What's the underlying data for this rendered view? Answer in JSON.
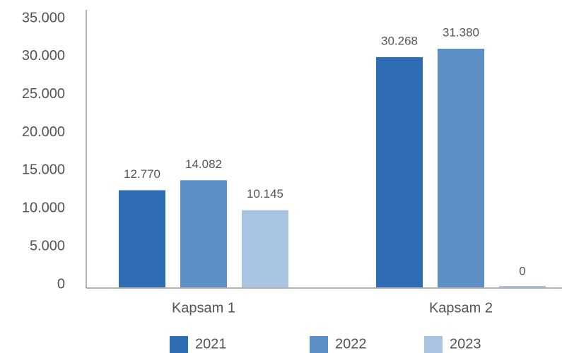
{
  "chart_data": {
    "type": "bar",
    "categories": [
      "Kapsam 1",
      "Kapsam 2"
    ],
    "series": [
      {
        "name": "2021",
        "color": "#2e6db4",
        "values": [
          12770,
          30268
        ],
        "value_labels": [
          "12.770",
          "30.268"
        ]
      },
      {
        "name": "2022",
        "color": "#5b8fc6",
        "values": [
          14082,
          31380
        ],
        "value_labels": [
          "14.082",
          "31.380"
        ]
      },
      {
        "name": "2023",
        "color": "#a9c4e0",
        "values": [
          10145,
          0
        ],
        "value_labels": [
          "10.145",
          "0"
        ]
      }
    ],
    "ylim": [
      0,
      35000
    ],
    "yticks": [
      0,
      {
        "value": 5000,
        "label": "5.000"
      },
      {
        "value": 10000,
        "label": "10.000"
      },
      {
        "value": 15000,
        "label": "15.000"
      },
      {
        "value": 20000,
        "label": "20.000"
      },
      {
        "value": 25000,
        "label": "25.000"
      },
      {
        "value": 30000,
        "label": "30.000"
      },
      {
        "value": 35000,
        "label": "35.000"
      }
    ],
    "grid": false,
    "legend": "bottom"
  }
}
